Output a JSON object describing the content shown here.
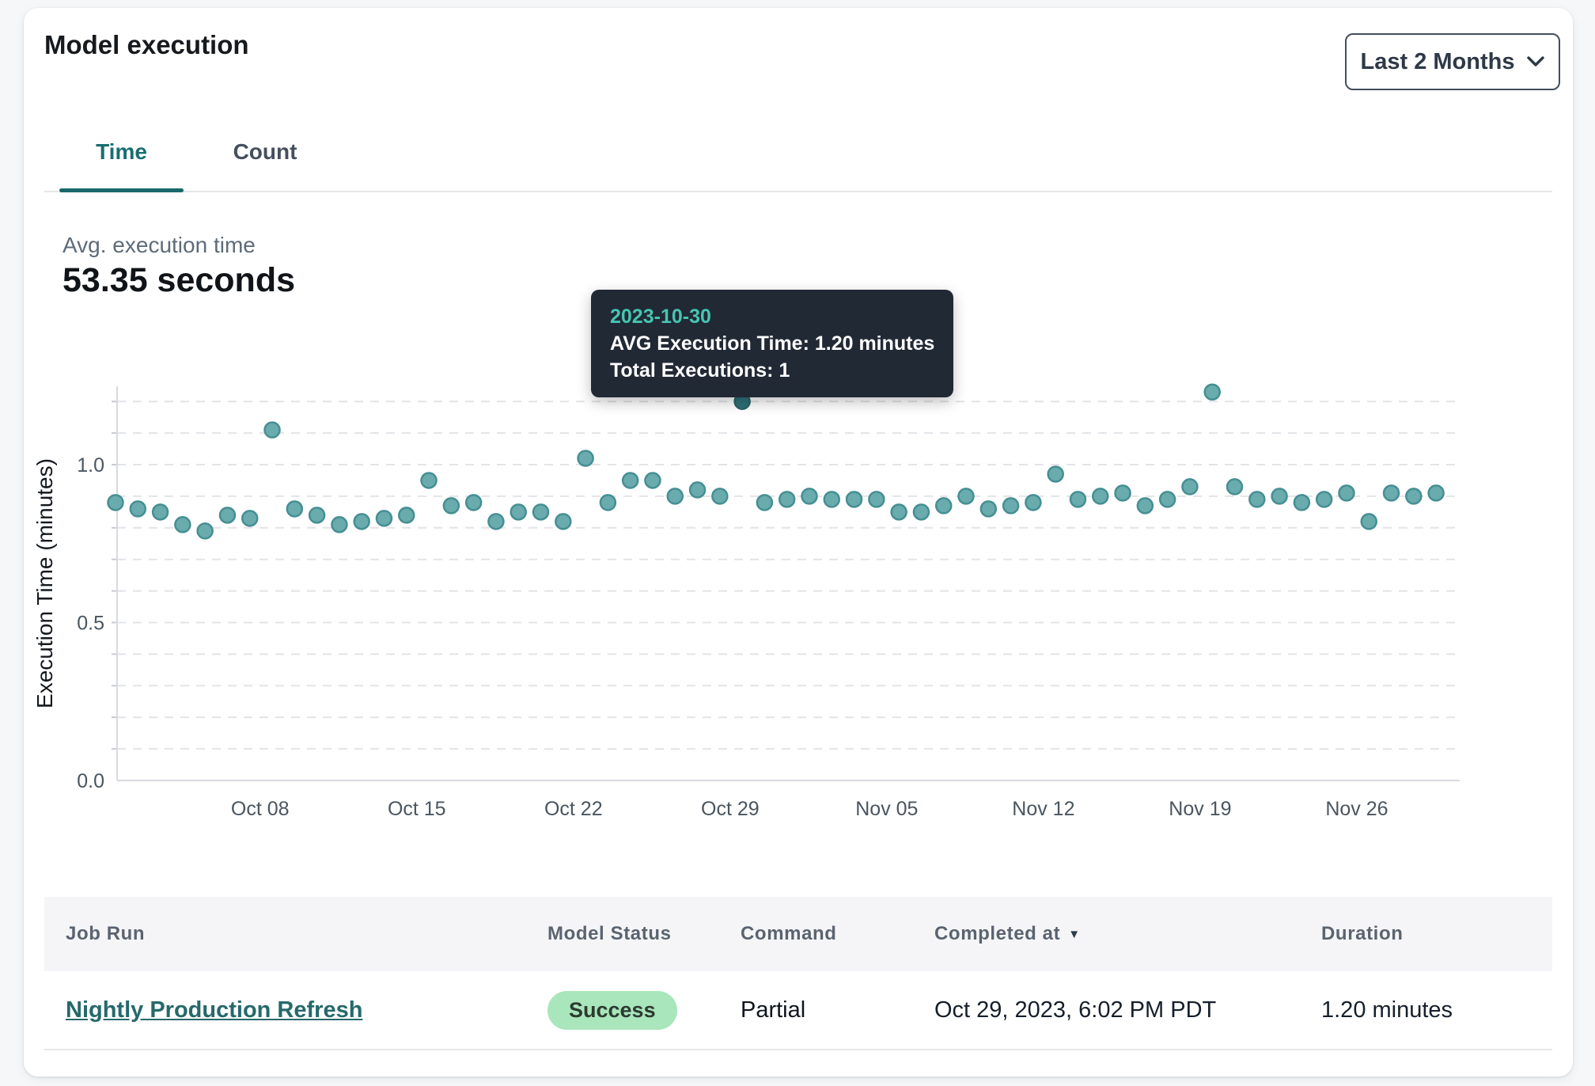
{
  "header": {
    "title": "Model execution",
    "range_selector": {
      "label": "Last 2 Months",
      "icon": "chevron-down-icon"
    }
  },
  "tabs": [
    {
      "label": "Time",
      "active": true
    },
    {
      "label": "Count",
      "active": false
    }
  ],
  "summary": {
    "label": "Avg. execution time",
    "value": "53.35 seconds"
  },
  "tooltip": {
    "date": "2023-10-30",
    "line1": "AVG Execution Time: 1.20 minutes",
    "line2": "Total Executions: 1"
  },
  "chart_data": {
    "type": "scatter",
    "title": "",
    "xlabel": "",
    "ylabel": "Execution Time (minutes)",
    "ylim": [
      0,
      1.25
    ],
    "yticks": [
      0.0,
      0.5,
      1.0
    ],
    "grid": "dashed horizontal gridlines every 0.1 minutes",
    "legend_position": "none",
    "x_tick_labels": [
      "Oct 08",
      "Oct 15",
      "Oct 22",
      "Oct 29",
      "Nov 05",
      "Nov 12",
      "Nov 19",
      "Nov 26"
    ],
    "x_tick_indexes": [
      6,
      13,
      20,
      27,
      34,
      41,
      48,
      55
    ],
    "dates": [
      "2023-10-02",
      "2023-10-03",
      "2023-10-04",
      "2023-10-05",
      "2023-10-06",
      "2023-10-07",
      "2023-10-08",
      "2023-10-09",
      "2023-10-10",
      "2023-10-11",
      "2023-10-12",
      "2023-10-13",
      "2023-10-14",
      "2023-10-15",
      "2023-10-16",
      "2023-10-17",
      "2023-10-18",
      "2023-10-19",
      "2023-10-20",
      "2023-10-21",
      "2023-10-22",
      "2023-10-23",
      "2023-10-24",
      "2023-10-25",
      "2023-10-26",
      "2023-10-27",
      "2023-10-28",
      "2023-10-29",
      "2023-10-30",
      "2023-10-31",
      "2023-11-01",
      "2023-11-02",
      "2023-11-03",
      "2023-11-04",
      "2023-11-05",
      "2023-11-06",
      "2023-11-07",
      "2023-11-08",
      "2023-11-09",
      "2023-11-10",
      "2023-11-11",
      "2023-11-12",
      "2023-11-13",
      "2023-11-14",
      "2023-11-15",
      "2023-11-16",
      "2023-11-17",
      "2023-11-18",
      "2023-11-19",
      "2023-11-20",
      "2023-11-21",
      "2023-11-22",
      "2023-11-23",
      "2023-11-24",
      "2023-11-25",
      "2023-11-26",
      "2023-11-27",
      "2023-11-28",
      "2023-11-29",
      "2023-11-30"
    ],
    "values": [
      0.88,
      0.86,
      0.85,
      0.81,
      0.79,
      0.84,
      0.83,
      1.11,
      0.86,
      0.84,
      0.81,
      0.82,
      0.83,
      0.84,
      0.95,
      0.87,
      0.88,
      0.82,
      0.85,
      0.85,
      0.82,
      1.02,
      0.88,
      0.95,
      0.95,
      0.9,
      0.92,
      0.9,
      1.2,
      0.88,
      0.89,
      0.9,
      0.89,
      0.89,
      0.89,
      0.85,
      0.85,
      0.87,
      0.9,
      0.86,
      0.87,
      0.88,
      0.97,
      0.89,
      0.9,
      0.91,
      0.87,
      0.89,
      0.93,
      1.23,
      0.93,
      0.89,
      0.9,
      0.88,
      0.89,
      0.91,
      0.82,
      0.91,
      0.9,
      0.91
    ],
    "highlight_index": 28,
    "point_color": "#6aabae",
    "point_stroke": "#458f93",
    "highlight_color": "#2f7177",
    "highlight_stroke": "#2a6468"
  },
  "table": {
    "columns": [
      {
        "label": "Job Run",
        "sortable": false
      },
      {
        "label": "Model Status",
        "sortable": false
      },
      {
        "label": "Command",
        "sortable": false
      },
      {
        "label": "Completed at",
        "sortable": true,
        "sort_direction": "desc"
      },
      {
        "label": "Duration",
        "sortable": false
      }
    ],
    "sort_icon": "▼",
    "rows": [
      {
        "job_run": "Nightly Production Refresh",
        "model_status": "Success",
        "command": "Partial",
        "completed_at": "Oct 29, 2023, 6:02 PM PDT",
        "duration": "1.20 minutes"
      }
    ]
  },
  "colors": {
    "accent_teal": "#19686a",
    "link_teal": "#26696b",
    "badge_success_bg": "#a9e6bb",
    "tooltip_bg": "#212935",
    "tooltip_accent": "#46c5b2",
    "grid_line": "#e3e4e8",
    "axis_line": "#d8dade"
  }
}
